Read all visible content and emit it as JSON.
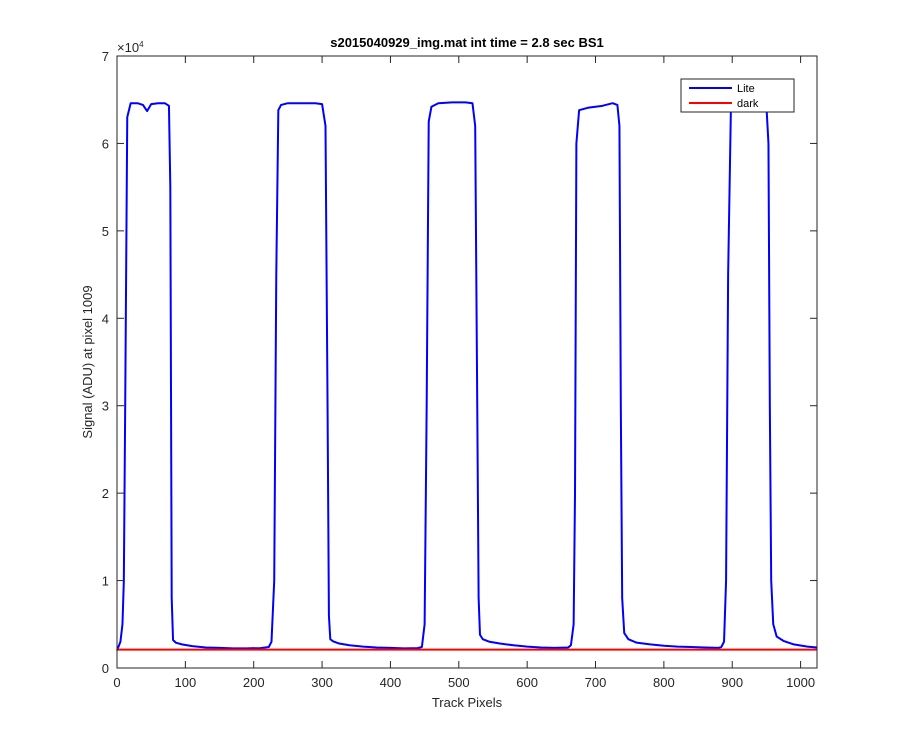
{
  "chart_data": {
    "type": "line",
    "title": "s2015040929_img.mat int time = 2.8 sec   BS1",
    "xlabel": "Track Pixels",
    "ylabel": "Signal (ADU) at pixel 1009",
    "xlim": [
      0,
      1024
    ],
    "ylim": [
      0,
      70000
    ],
    "xticks": [
      0,
      100,
      200,
      300,
      400,
      500,
      600,
      700,
      800,
      900,
      1000
    ],
    "yticks": [
      0,
      10000,
      20000,
      30000,
      40000,
      50000,
      60000,
      70000
    ],
    "ytick_labels": [
      "0",
      "1",
      "2",
      "3",
      "4",
      "5",
      "6",
      "7"
    ],
    "y_exponent_base": "×10",
    "y_exponent_power": "4",
    "grid": false,
    "legend_position": "top-right",
    "series": [
      {
        "name": "Lite",
        "color": "#0000ff",
        "x": [
          0,
          5,
          8,
          10,
          12,
          15,
          20,
          30,
          38,
          44,
          50,
          60,
          70,
          76,
          78,
          80,
          82,
          86,
          95,
          110,
          130,
          150,
          170,
          190,
          210,
          222,
          226,
          230,
          233,
          236,
          240,
          250,
          270,
          290,
          300,
          305,
          308,
          310,
          312,
          316,
          325,
          340,
          360,
          380,
          400,
          420,
          440,
          446,
          450,
          453,
          456,
          460,
          470,
          490,
          510,
          520,
          524,
          527,
          529,
          531,
          535,
          545,
          560,
          580,
          600,
          620,
          640,
          660,
          664,
          668,
          670,
          672,
          676,
          690,
          710,
          725,
          732,
          735,
          737,
          739,
          742,
          748,
          760,
          780,
          800,
          820,
          840,
          860,
          880,
          884,
          888,
          891,
          894,
          898,
          910,
          930,
          950,
          953,
          955,
          957,
          960,
          965,
          975,
          990,
          1010,
          1024
        ],
        "y": [
          2000,
          3000,
          5000,
          10000,
          30000,
          63000,
          64600,
          64600,
          64400,
          63700,
          64500,
          64600,
          64600,
          64300,
          55000,
          8000,
          3200,
          2900,
          2700,
          2500,
          2350,
          2300,
          2250,
          2250,
          2280,
          2400,
          3000,
          10000,
          45000,
          63800,
          64400,
          64600,
          64600,
          64600,
          64500,
          62000,
          30000,
          6000,
          3300,
          3050,
          2800,
          2600,
          2450,
          2350,
          2300,
          2250,
          2280,
          2400,
          5000,
          30000,
          62500,
          64200,
          64600,
          64700,
          64700,
          64600,
          62000,
          30000,
          8000,
          3800,
          3300,
          3000,
          2800,
          2600,
          2450,
          2350,
          2300,
          2350,
          2600,
          5000,
          20000,
          60000,
          63800,
          64100,
          64300,
          64600,
          64400,
          62000,
          30000,
          8000,
          4000,
          3300,
          2900,
          2700,
          2550,
          2450,
          2400,
          2350,
          2300,
          2400,
          3000,
          10000,
          45000,
          63800,
          64300,
          64400,
          64300,
          60000,
          30000,
          10000,
          5000,
          3600,
          3100,
          2700,
          2450,
          2350
        ]
      },
      {
        "name": "dark",
        "color": "#ff0000",
        "x": [
          0,
          1024
        ],
        "y": [
          2100,
          2100
        ]
      }
    ]
  }
}
